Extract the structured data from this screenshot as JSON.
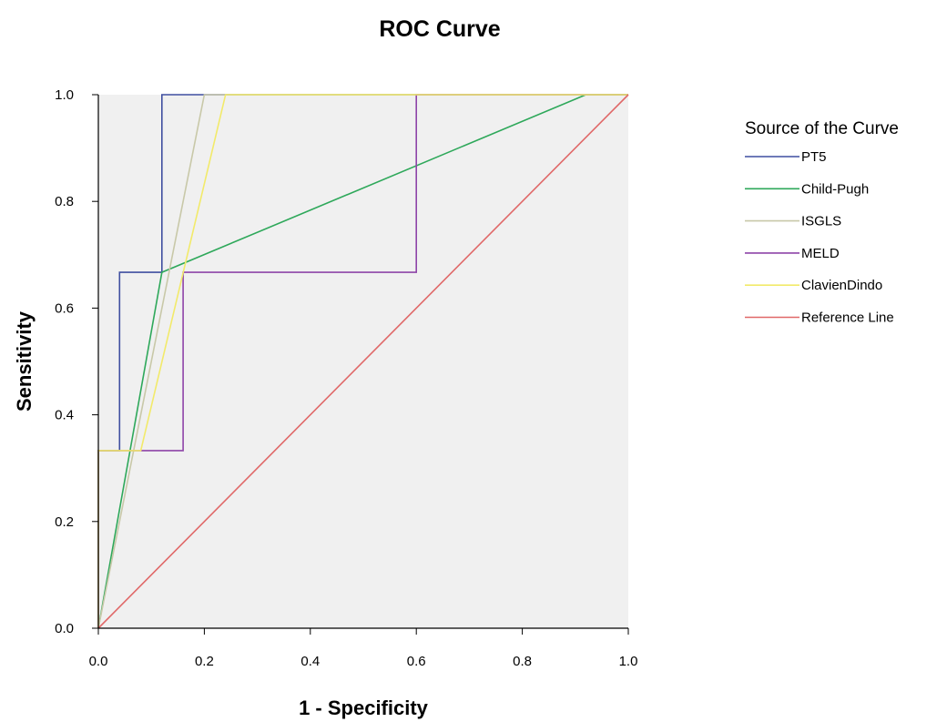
{
  "chart_data": {
    "type": "line",
    "title": "ROC Curve",
    "xlabel": "1 - Specificity",
    "ylabel": "Sensitivity",
    "xlim": [
      0,
      1
    ],
    "ylim": [
      0,
      1
    ],
    "xticks": [
      "0.0",
      "0.2",
      "0.4",
      "0.6",
      "0.8",
      "1.0"
    ],
    "yticks": [
      "0.0",
      "0.2",
      "0.4",
      "0.6",
      "0.8",
      "1.0"
    ],
    "plot_background": "#f0f0f0",
    "grid": false,
    "legend": {
      "title": "Source of the Curve",
      "placement": "right"
    },
    "series": [
      {
        "name": "PT5",
        "color": "#3f4fa0",
        "points": [
          [
            0,
            0
          ],
          [
            0,
            0.333
          ],
          [
            0.04,
            0.333
          ],
          [
            0.04,
            0.667
          ],
          [
            0.12,
            0.667
          ],
          [
            0.12,
            1.0
          ],
          [
            0.2,
            1.0
          ],
          [
            1.0,
            1.0
          ]
        ]
      },
      {
        "name": "Child-Pugh",
        "color": "#2ea85a",
        "points": [
          [
            0,
            0
          ],
          [
            0.12,
            0.667
          ],
          [
            0.92,
            1.0
          ],
          [
            1.0,
            1.0
          ]
        ]
      },
      {
        "name": "ISGLS",
        "color": "#c8c8a8",
        "points": [
          [
            0,
            0
          ],
          [
            0.2,
            1.0
          ],
          [
            1.0,
            1.0
          ]
        ]
      },
      {
        "name": "MELD",
        "color": "#8e44a8",
        "points": [
          [
            0,
            0
          ],
          [
            0,
            0.333
          ],
          [
            0.16,
            0.333
          ],
          [
            0.16,
            0.667
          ],
          [
            0.6,
            0.667
          ],
          [
            0.6,
            1.0
          ],
          [
            1.0,
            1.0
          ]
        ]
      },
      {
        "name": "ClavienDindo",
        "color": "#f2ea6a",
        "points": [
          [
            0,
            0
          ],
          [
            0,
            0.333
          ],
          [
            0.08,
            0.333
          ],
          [
            0.24,
            1.0
          ],
          [
            1.0,
            1.0
          ]
        ]
      },
      {
        "name": "Reference Line",
        "color": "#e06868",
        "points": [
          [
            0,
            0
          ],
          [
            1.0,
            1.0
          ]
        ]
      }
    ]
  }
}
